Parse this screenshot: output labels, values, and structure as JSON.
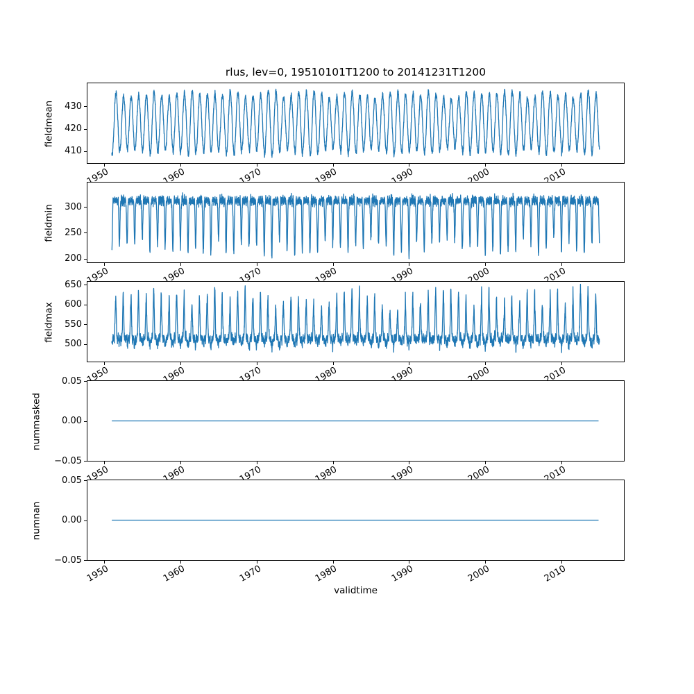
{
  "figure": {
    "background": "#ffffff",
    "axes_facecolor": "#ffffff",
    "spine_color": "#000000",
    "text_color": "#000000",
    "line_color": "#1f77b4"
  },
  "title": "rlus, lev=0, 19510101T1200 to 20141231T1200",
  "xlabel": "validtime",
  "x_axis": {
    "label": "validtime",
    "range": [
      1947.8,
      2018.2
    ],
    "ticks": [
      {
        "v": 1950,
        "label": "1950"
      },
      {
        "v": 1960,
        "label": "1960"
      },
      {
        "v": 1970,
        "label": "1970"
      },
      {
        "v": 1980,
        "label": "1980"
      },
      {
        "v": 1990,
        "label": "1990"
      },
      {
        "v": 2000,
        "label": "2000"
      },
      {
        "v": 2010,
        "label": "2010"
      }
    ],
    "tick_rotation_deg": 30
  },
  "chart_data": [
    {
      "type": "line",
      "panel": "fieldmean",
      "ylabel": "fieldmean",
      "legend": "none",
      "grid": false,
      "y_axis": {
        "range": [
          404.6,
          440.4
        ],
        "ticks": [
          {
            "v": 410,
            "label": "410"
          },
          {
            "v": 420,
            "label": "420"
          },
          {
            "v": 430,
            "label": "430"
          }
        ]
      },
      "series": {
        "name": "fieldmean",
        "color": "#1f77b4",
        "x_start": 1951.0,
        "x_end": 2014.99,
        "samples_per_year": 56,
        "shape": "seasonal-sine",
        "params": {
          "mean": 422.6,
          "amplitude": 11.6,
          "amp_jitter": 2.4,
          "noise": 1.7
        },
        "approx_min": 407,
        "approx_max": 438.5,
        "description": "dense annual oscillation between about 408 and 437 W m-2, 64 yearly cycles"
      }
    },
    {
      "type": "line",
      "panel": "fieldmin",
      "ylabel": "fieldmin",
      "legend": "none",
      "grid": false,
      "y_axis": {
        "range": [
          192.8,
          347.2
        ],
        "ticks": [
          {
            "v": 200,
            "label": "200"
          },
          {
            "v": 250,
            "label": "250"
          },
          {
            "v": 300,
            "label": "300"
          }
        ]
      },
      "series": {
        "name": "fieldmin",
        "color": "#1f77b4",
        "x_start": 1951.0,
        "x_end": 2014.99,
        "samples_per_year": 56,
        "shape": "plateau-winter-dips",
        "params": {
          "plateau": 312,
          "band_noise": 10,
          "slow_wiggle": 8,
          "dip_depth_min": 72,
          "dip_depth_max": 108,
          "dip_sharpness": 6
        },
        "approx_min": 200,
        "approx_max": 340,
        "description": "band around 295-335 with yearly downward spikes reaching about 200-240"
      }
    },
    {
      "type": "line",
      "panel": "fieldmax",
      "ylabel": "fieldmax",
      "legend": "none",
      "grid": false,
      "y_axis": {
        "range": [
          455.9,
          657.1
        ],
        "ticks": [
          {
            "v": 500,
            "label": "500"
          },
          {
            "v": 550,
            "label": "550"
          },
          {
            "v": 600,
            "label": "600"
          },
          {
            "v": 650,
            "label": "650"
          }
        ]
      },
      "series": {
        "name": "fieldmax",
        "color": "#1f77b4",
        "x_start": 1951.0,
        "x_end": 2014.99,
        "samples_per_year": 56,
        "shape": "plateau-summer-spikes",
        "params": {
          "plateau": 514,
          "band_noise": 14,
          "slow_wiggle": 9,
          "spike_height_min": 62,
          "spike_height_max": 132,
          "spike_sharpness": 5,
          "winter_dip": 24
        },
        "approx_min": 465,
        "approx_max": 650,
        "description": "band around 485-545 with yearly upward spikes reaching about 580-650"
      }
    },
    {
      "type": "line",
      "panel": "nummasked",
      "ylabel": "nummasked",
      "legend": "none",
      "grid": false,
      "y_axis": {
        "range": [
          -0.05,
          0.05
        ],
        "ticks": [
          {
            "v": -0.05,
            "label": "−0.05"
          },
          {
            "v": 0.0,
            "label": "0.00"
          },
          {
            "v": 0.05,
            "label": "0.05"
          }
        ]
      },
      "series": {
        "name": "nummasked",
        "color": "#1f77b4",
        "x_start": 1951.0,
        "x_end": 2014.99,
        "samples_per_year": 8,
        "shape": "constant",
        "params": {
          "value": 0.0
        },
        "approx_min": 0,
        "approx_max": 0,
        "description": "constant zero line"
      }
    },
    {
      "type": "line",
      "panel": "numnan",
      "ylabel": "numnan",
      "legend": "none",
      "grid": false,
      "y_axis": {
        "range": [
          -0.05,
          0.05
        ],
        "ticks": [
          {
            "v": -0.05,
            "label": "−0.05"
          },
          {
            "v": 0.0,
            "label": "0.00"
          },
          {
            "v": 0.05,
            "label": "0.05"
          }
        ]
      },
      "series": {
        "name": "numnan",
        "color": "#1f77b4",
        "x_start": 1951.0,
        "x_end": 2014.99,
        "samples_per_year": 8,
        "shape": "constant",
        "params": {
          "value": 0.0
        },
        "approx_min": 0,
        "approx_max": 0,
        "description": "constant zero line"
      }
    }
  ]
}
